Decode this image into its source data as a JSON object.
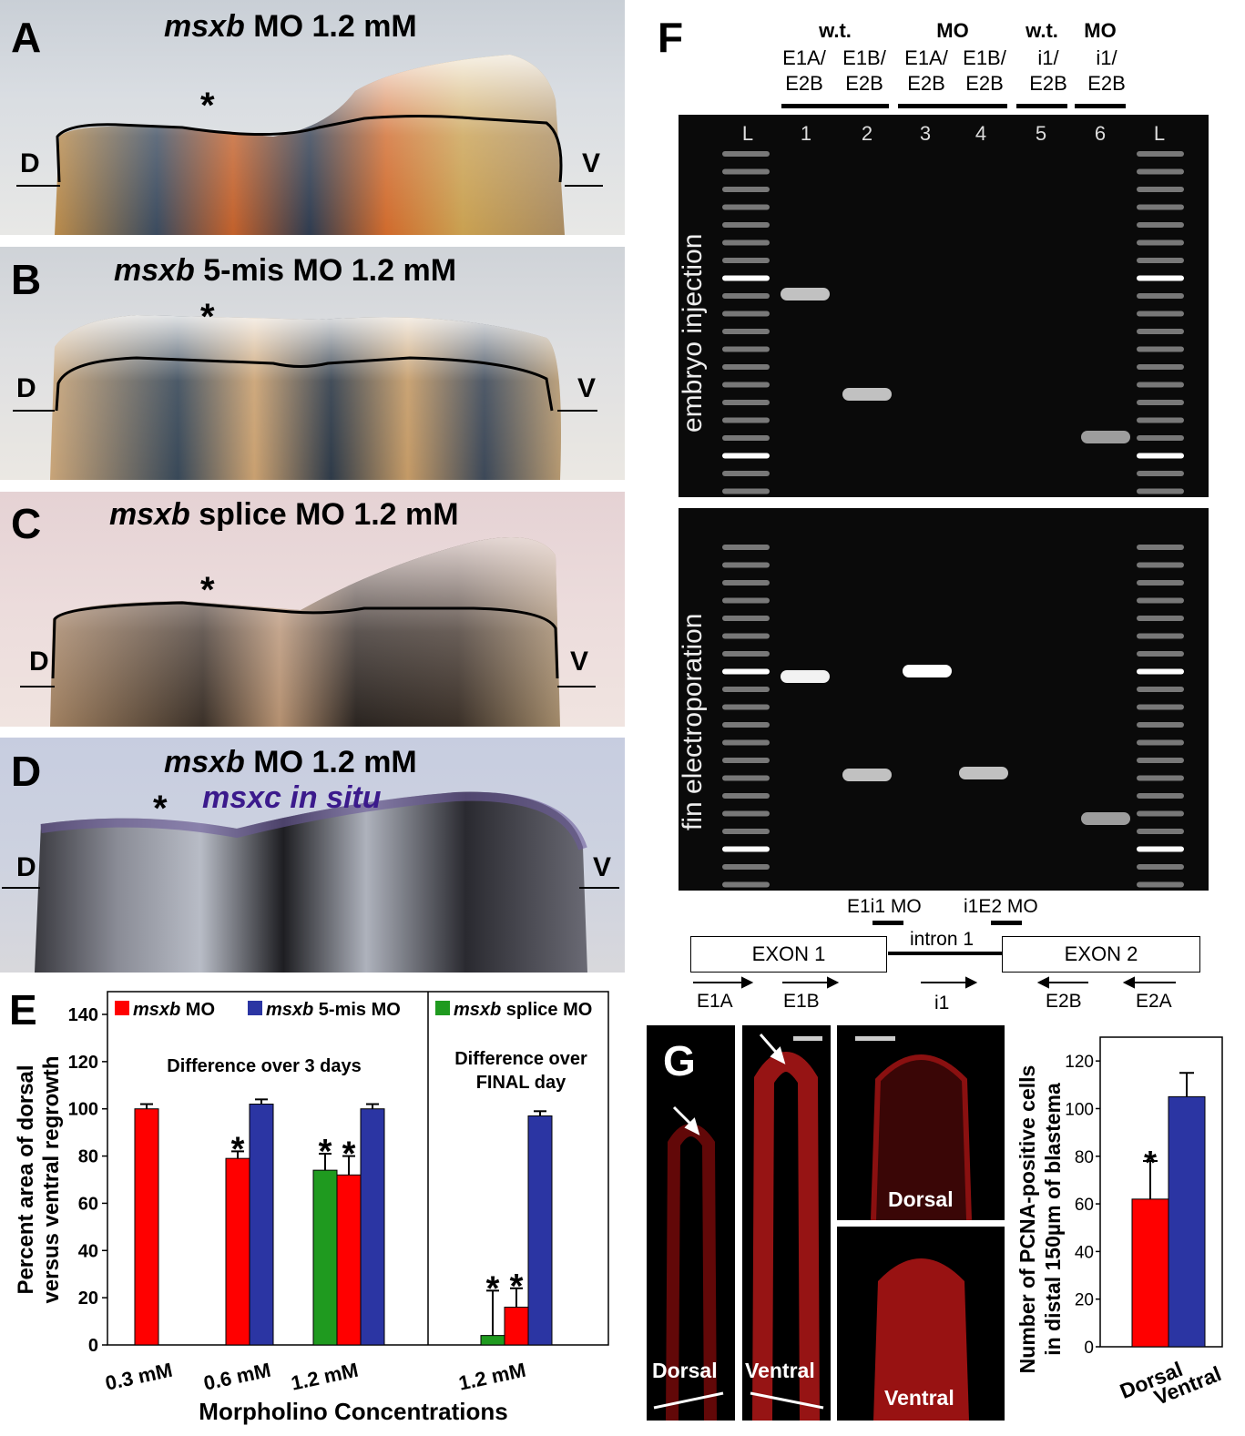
{
  "panels": {
    "A": {
      "letter": "A",
      "title_gene": "msxb",
      "title_rest": " MO 1.2 mM",
      "star": "*",
      "d": "D",
      "v": "V"
    },
    "B": {
      "letter": "B",
      "title_gene": "msxb",
      "title_rest": " 5-mis MO 1.2 mM",
      "star": "*",
      "d": "D",
      "v": "V"
    },
    "C": {
      "letter": "C",
      "title_gene": "msxb",
      "title_rest": " splice MO 1.2 mM",
      "star": "*",
      "d": "D",
      "v": "V"
    },
    "D": {
      "letter": "D",
      "title_gene": "msxb",
      "title_rest": " MO 1.2 mM",
      "subtitle": "msxc in situ",
      "star": "*",
      "d": "D",
      "v": "V"
    },
    "E": {
      "letter": "E"
    },
    "F": {
      "letter": "F",
      "groups": [
        {
          "label": "w.t."
        },
        {
          "label": "MO"
        },
        {
          "label": "w.t."
        },
        {
          "label": "MO"
        }
      ],
      "primers": [
        [
          "E1A/",
          "E2B"
        ],
        [
          "E1B/",
          "E2B"
        ],
        [
          "E1A/",
          "E2B"
        ],
        [
          "E1B/",
          "E2B"
        ],
        [
          "i1/",
          "E2B"
        ],
        [
          "i1/",
          "E2B"
        ]
      ],
      "lanes": [
        "L",
        "1",
        "2",
        "3",
        "4",
        "5",
        "6",
        "L"
      ],
      "gel_top_label": "embryo injection",
      "gel_bottom_label": "fin electroporation",
      "diagram": {
        "mo1": "E1i1 MO",
        "mo2": "i1E2 MO",
        "intron": "intron 1",
        "exon1": "EXON 1",
        "exon2": "EXON 2",
        "primer_labels": [
          "E1A",
          "E1B",
          "i1",
          "E2B",
          "E2A"
        ]
      }
    },
    "G": {
      "letter": "G",
      "dorsal": "Dorsal",
      "ventral": "Ventral",
      "dorsal_zoom": "Dorsal",
      "ventral_zoom": "Ventral"
    }
  },
  "chart_data": [
    {
      "type": "bar",
      "panel": "E",
      "ylabel": "Percent area of dorsal versus ventral regrowth",
      "xlabel": "Morpholino Concentrations",
      "ylim": [
        0,
        140
      ],
      "yticks": [
        0,
        20,
        40,
        60,
        80,
        100,
        120,
        140
      ],
      "legend": [
        {
          "name": "msxb",
          "suffix": " MO",
          "color": "#ff0000"
        },
        {
          "name": "msxb",
          "suffix": " 5-mis MO",
          "color": "#2b35a3"
        },
        {
          "name": "msxb",
          "suffix": " splice MO",
          "color": "#1f9a1f"
        }
      ],
      "subtitle_left": "Difference over 3 days",
      "subtitle_right_1": "Difference over",
      "subtitle_right_2": "FINAL day",
      "groups": [
        {
          "label": "0.3 mM",
          "bars": [
            {
              "series": "MO",
              "value": 100,
              "err": 2,
              "sig": false
            }
          ]
        },
        {
          "label": "0.6 mM",
          "bars": [
            {
              "series": "MO",
              "value": 79,
              "err": 3,
              "sig": true
            },
            {
              "series": "5-mis",
              "value": 102,
              "err": 2,
              "sig": false
            }
          ]
        },
        {
          "label": "1.2 mM",
          "bars": [
            {
              "series": "splice",
              "value": 74,
              "err": 7,
              "sig": true
            },
            {
              "series": "MO",
              "value": 72,
              "err": 8,
              "sig": true
            },
            {
              "series": "5-mis",
              "value": 100,
              "err": 2,
              "sig": false
            }
          ]
        },
        {
          "label": "1.2 mM",
          "bars": [
            {
              "series": "splice",
              "value": 4,
              "err": 19,
              "sig": true
            },
            {
              "series": "MO",
              "value": 16,
              "err": 8,
              "sig": true
            },
            {
              "series": "5-mis",
              "value": 97,
              "err": 2,
              "sig": false
            }
          ]
        }
      ]
    },
    {
      "type": "bar",
      "panel": "G",
      "ylabel": "Number of PCNA-positive cells in distal 150µm of blastema",
      "ylim": [
        0,
        130
      ],
      "yticks": [
        0,
        20,
        40,
        60,
        80,
        100,
        120
      ],
      "categories": [
        "Dorsal",
        "Ventral"
      ],
      "values": [
        62,
        105
      ],
      "errors": [
        16,
        10
      ],
      "sig": [
        true,
        false
      ],
      "colors": [
        "#ff0000",
        "#2b35a3"
      ]
    }
  ]
}
